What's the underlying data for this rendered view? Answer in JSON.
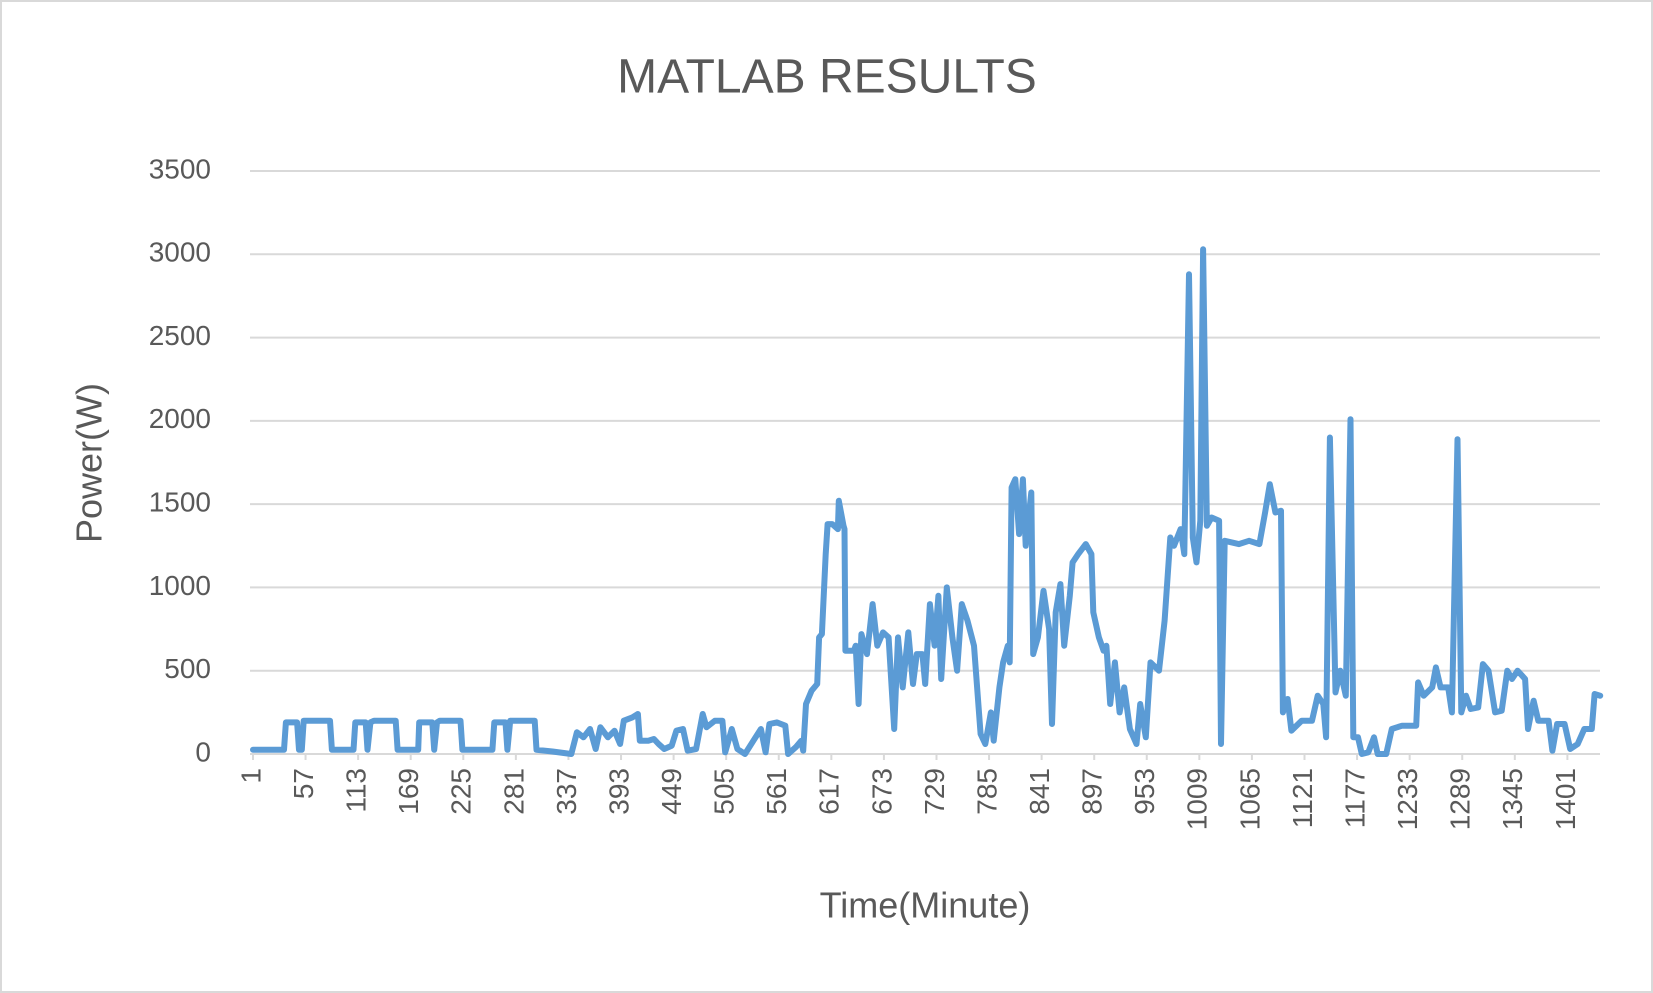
{
  "chart_data": {
    "type": "line",
    "title": "MATLAB RESULTS",
    "x_label": "Time(Minute)",
    "y_label": "Power(W)",
    "color": "#5b9bd5",
    "grid": true,
    "xlim": [
      1,
      1440
    ],
    "xticks": [
      1,
      57,
      113,
      169,
      225,
      281,
      337,
      393,
      449,
      505,
      561,
      617,
      673,
      729,
      785,
      841,
      897,
      953,
      1009,
      1065,
      1121,
      1177,
      1233,
      1289,
      1345,
      1401
    ],
    "ylim": [
      0,
      3500
    ],
    "yticks": [
      0,
      500,
      1000,
      1500,
      2000,
      2500,
      3000,
      3500
    ],
    "x": [
      1,
      34,
      36,
      48,
      50,
      53,
      55,
      83,
      85,
      108,
      110,
      121,
      123,
      126,
      130,
      153,
      155,
      177,
      178,
      192,
      194,
      197,
      200,
      222,
      224,
      256,
      258,
      270,
      272,
      275,
      301,
      303,
      320,
      340,
      346,
      353,
      360,
      366,
      371,
      379,
      386,
      392,
      396,
      405,
      411,
      413,
      422,
      428,
      433,
      439,
      447,
      452,
      459,
      464,
      473,
      480,
      484,
      493,
      501,
      504,
      511,
      517,
      525,
      534,
      542,
      547,
      551,
      559,
      568,
      571,
      579,
      585,
      587,
      590,
      596,
      602,
      604,
      607,
      611,
      613,
      618,
      624,
      625,
      630,
      631,
      632,
      641,
      643,
      646,
      649,
      655,
      661,
      666,
      672,
      678,
      684,
      688,
      693,
      699,
      704,
      708,
      714,
      717,
      722,
      727,
      731,
      734,
      740,
      746,
      751,
      756,
      762,
      769,
      776,
      781,
      787,
      790,
      796,
      800,
      805,
      807,
      809,
      813,
      817,
      821,
      824,
      830,
      832,
      837,
      843,
      849,
      852,
      856,
      861,
      865,
      871,
      874,
      880,
      888,
      894,
      896,
      902,
      907,
      910,
      914,
      919,
      924,
      929,
      935,
      942,
      946,
      952,
      957,
      966,
      972,
      978,
      982,
      989,
      993,
      998,
      1002,
      1006,
      1010,
      1013,
      1017,
      1022,
      1030,
      1032,
      1036,
      1051,
      1062,
      1073,
      1079,
      1084,
      1090,
      1096,
      1098,
      1103,
      1107,
      1118,
      1129,
      1135,
      1141,
      1144,
      1148,
      1154,
      1159,
      1165,
      1170,
      1173,
      1178,
      1182,
      1189,
      1195,
      1199,
      1208,
      1214,
      1225,
      1240,
      1242,
      1248,
      1257,
      1261,
      1266,
      1274,
      1278,
      1284,
      1288,
      1293,
      1298,
      1306,
      1311,
      1317,
      1324,
      1331,
      1337,
      1342,
      1348,
      1356,
      1359,
      1365,
      1370,
      1381,
      1385,
      1390,
      1398,
      1404,
      1412,
      1419,
      1427,
      1430,
      1436
    ],
    "values": [
      25,
      25,
      190,
      190,
      25,
      25,
      200,
      200,
      25,
      25,
      190,
      190,
      25,
      190,
      200,
      200,
      25,
      25,
      190,
      190,
      25,
      190,
      200,
      200,
      25,
      25,
      190,
      190,
      25,
      200,
      200,
      25,
      15,
      0,
      130,
      100,
      150,
      30,
      160,
      100,
      140,
      60,
      200,
      220,
      240,
      80,
      80,
      90,
      60,
      30,
      50,
      140,
      150,
      20,
      30,
      240,
      160,
      200,
      200,
      10,
      150,
      30,
      0,
      80,
      150,
      10,
      180,
      190,
      170,
      0,
      40,
      80,
      20,
      300,
      380,
      420,
      700,
      720,
      1200,
      1380,
      1380,
      1350,
      1520,
      1370,
      1350,
      620,
      620,
      650,
      300,
      720,
      600,
      900,
      650,
      730,
      700,
      150,
      700,
      400,
      730,
      420,
      600,
      600,
      420,
      900,
      650,
      950,
      450,
      1000,
      700,
      500,
      900,
      800,
      650,
      120,
      60,
      250,
      80,
      400,
      550,
      650,
      550,
      1600,
      1650,
      1320,
      1650,
      1250,
      1570,
      600,
      700,
      980,
      750,
      180,
      850,
      1020,
      650,
      950,
      1150,
      1200,
      1260,
      1200,
      850,
      700,
      620,
      650,
      300,
      550,
      250,
      400,
      150,
      60,
      300,
      100,
      550,
      500,
      800,
      1300,
      1250,
      1350,
      1200,
      2880,
      1300,
      1150,
      1400,
      3030,
      1370,
      1420,
      1400,
      60,
      1280,
      1260,
      1280,
      1260,
      1450,
      1620,
      1450,
      1460,
      250,
      330,
      140,
      200,
      200,
      350,
      300,
      100,
      1900,
      370,
      500,
      350,
      2010,
      100,
      100,
      0,
      10,
      100,
      0,
      0,
      150,
      170,
      170,
      430,
      350,
      400,
      520,
      400,
      400,
      250,
      1890,
      250,
      350,
      270,
      280,
      540,
      500,
      250,
      260,
      500,
      450,
      500,
      450,
      150,
      320,
      200,
      200,
      20,
      180,
      180,
      30,
      60,
      150,
      150,
      360,
      350
    ]
  }
}
